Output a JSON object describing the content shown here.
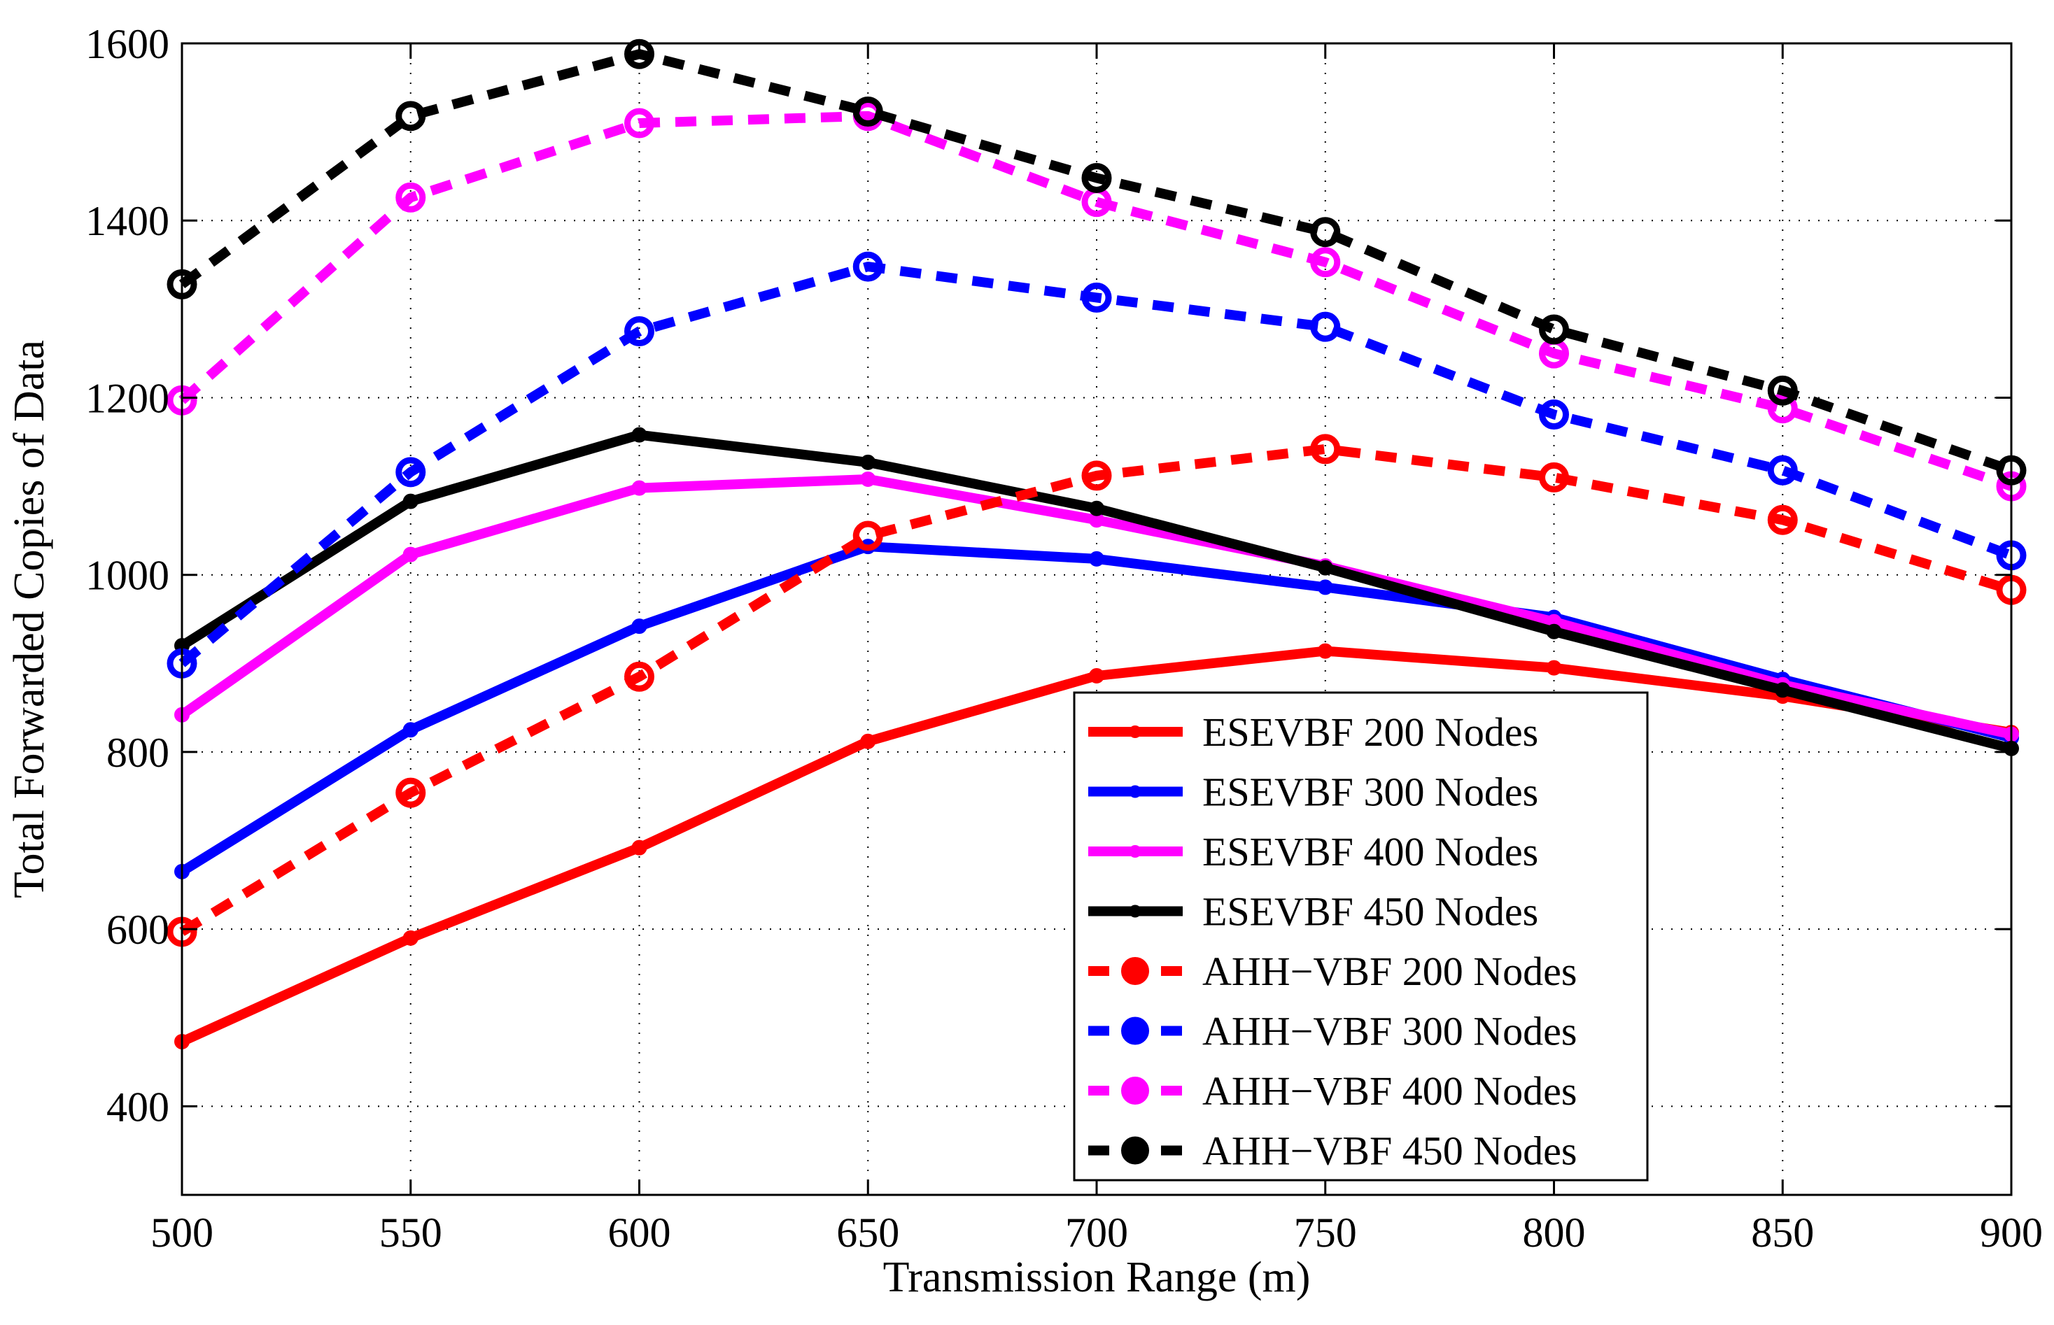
{
  "chart_data": {
    "type": "line",
    "title": "",
    "xlabel": "Transmission Range (m)",
    "ylabel": "Total Forwarded Copies of Data",
    "xlim": [
      500,
      900
    ],
    "ylim": [
      300,
      1600
    ],
    "xticks": [
      500,
      550,
      600,
      650,
      700,
      750,
      800,
      850,
      900
    ],
    "yticks": [
      400,
      600,
      800,
      1000,
      1200,
      1400,
      1600
    ],
    "grid": true,
    "legend_position": "lower-center",
    "x": [
      500,
      550,
      600,
      650,
      700,
      750,
      800,
      850,
      900
    ],
    "series": [
      {
        "name": "ESEVBF 200 Nodes",
        "color": "#ff0000",
        "style": "solid",
        "marker": "small",
        "values": [
          473,
          590,
          692,
          812,
          886,
          914,
          895,
          863,
          822
        ]
      },
      {
        "name": "ESEVBF 300 Nodes",
        "color": "#0000ff",
        "style": "solid",
        "marker": "small",
        "values": [
          665,
          825,
          942,
          1032,
          1018,
          986,
          952,
          882,
          816
        ]
      },
      {
        "name": "ESEVBF 400 Nodes",
        "color": "#ff00ff",
        "style": "solid",
        "marker": "small",
        "values": [
          842,
          1023,
          1098,
          1108,
          1062,
          1010,
          947,
          876,
          820
        ]
      },
      {
        "name": "ESEVBF 450 Nodes",
        "color": "#000000",
        "style": "solid",
        "marker": "small",
        "values": [
          920,
          1083,
          1158,
          1127,
          1075,
          1008,
          936,
          870,
          804
        ]
      },
      {
        "name": "AHH−VBF 200 Nodes",
        "color": "#ff0000",
        "style": "dashed",
        "marker": "circle",
        "values": [
          597,
          754,
          885,
          1044,
          1112,
          1142,
          1110,
          1062,
          983
        ]
      },
      {
        "name": "AHH−VBF 300 Nodes",
        "color": "#0000ff",
        "style": "dashed",
        "marker": "circle",
        "values": [
          900,
          1116,
          1275,
          1348,
          1313,
          1280,
          1181,
          1118,
          1022
        ]
      },
      {
        "name": "AHH−VBF 400 Nodes",
        "color": "#ff00ff",
        "style": "dashed",
        "marker": "circle",
        "values": [
          1197,
          1426,
          1510,
          1518,
          1421,
          1353,
          1250,
          1188,
          1100
        ]
      },
      {
        "name": "AHH−VBF 450 Nodes",
        "color": "#000000",
        "style": "dashed",
        "marker": "circle",
        "values": [
          1328,
          1518,
          1588,
          1523,
          1448,
          1387,
          1277,
          1208,
          1118
        ]
      }
    ]
  }
}
